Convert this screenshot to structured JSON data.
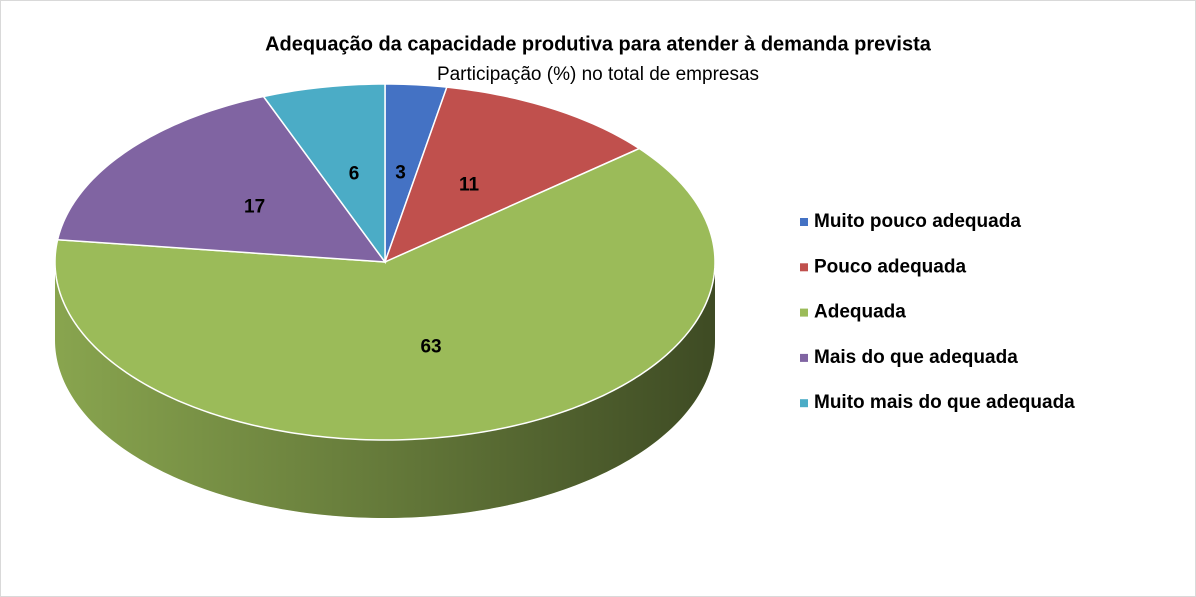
{
  "chart_data": {
    "type": "pie",
    "title": "Adequação da capacidade produtiva para atender à demanda prevista",
    "subtitle": "Participação (%) no total de empresas",
    "categories": [
      "Muito pouco adequada",
      "Pouco adequada",
      "Adequada",
      "Mais do que adequada",
      "Muito mais do que adequada"
    ],
    "values": [
      3,
      11,
      63,
      17,
      6
    ],
    "colors": [
      "#4472c4",
      "#c0504d",
      "#9bbb59",
      "#8064a2",
      "#4bacc6"
    ],
    "legend": "right"
  }
}
